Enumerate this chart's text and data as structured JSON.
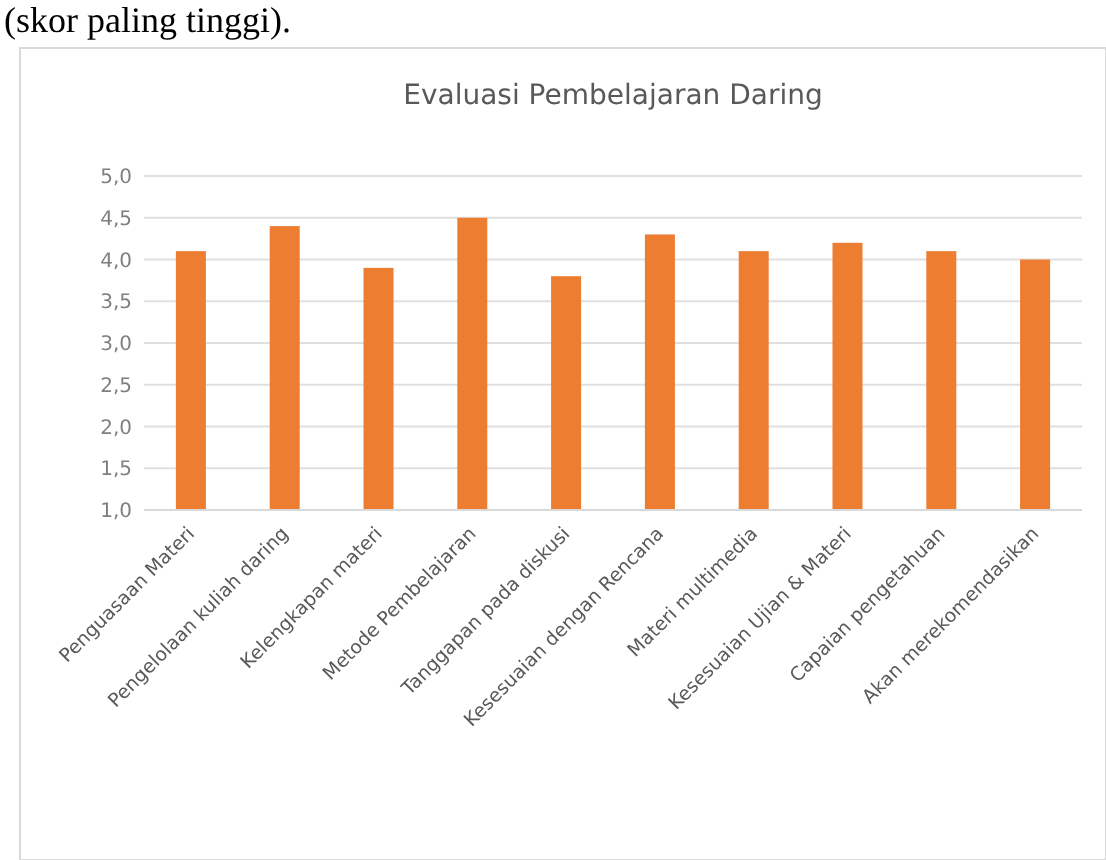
{
  "chart_data": {
    "type": "bar",
    "title": "Evaluasi Pembelajaran Daring",
    "annotations": [
      "(skor paling tinggi)."
    ],
    "categories": [
      "Penguasaan Materi",
      "Pengelolaan kuliah daring",
      "Kelengkapan materi",
      "Metode Pembelajaran",
      "Tanggapan pada diskusi",
      "Kesesuaian dengan Rencana",
      "Materi multimedia",
      "Kesesuaian Ujian & Materi",
      "Capaian pengetahuan",
      "Akan merekomendasikan"
    ],
    "values": [
      4.1,
      4.4,
      3.9,
      4.5,
      3.8,
      4.3,
      4.1,
      4.2,
      4.1,
      4.0
    ],
    "color": "#ed7d31",
    "ylim": [
      1,
      5
    ],
    "yticks": [
      {
        "value": 1,
        "label": "1,0"
      },
      {
        "value": 1.5,
        "label": "1,5"
      },
      {
        "value": 2,
        "label": "2,0"
      },
      {
        "value": 2.5,
        "label": "2,5"
      },
      {
        "value": 3,
        "label": "3,0"
      },
      {
        "value": 3.5,
        "label": "3,5"
      },
      {
        "value": 4,
        "label": "4,0"
      },
      {
        "value": 4.5,
        "label": "4,5"
      },
      {
        "value": 5,
        "label": "5,0"
      }
    ],
    "grid": "y"
  }
}
